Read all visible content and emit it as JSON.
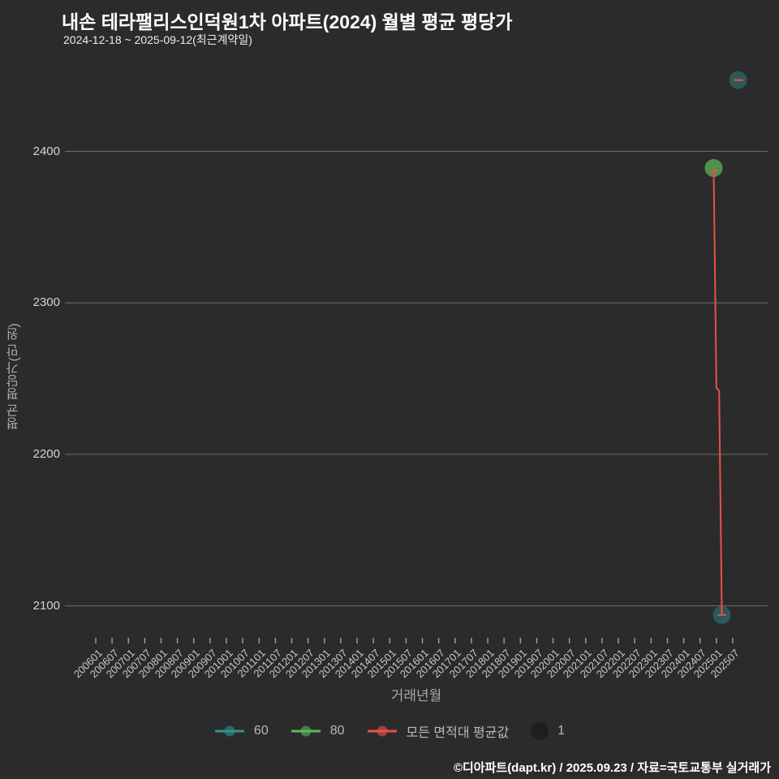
{
  "header": {
    "title": "내손 테라팰리스인덕원1차 아파트(2024) 월별 평균 평당가",
    "subtitle": "2024-12-18 ~ 2025-09-12(최근계약일)"
  },
  "footer": {
    "credit": "©디아파트(dapt.kr) / 2025.09.23 / 자료=국토교통부 실거래가"
  },
  "legend": {
    "items": [
      {
        "label": "60"
      },
      {
        "label": "80"
      },
      {
        "label": "모든 면적대 평균값"
      },
      {
        "label": "1"
      }
    ]
  },
  "chart_data": {
    "type": "scatter",
    "title": "내손 테라팰리스인덕원1차 아파트(2024) 월별 평균 평당가",
    "subtitle": "2024-12-18 ~ 2025-09-12(최근계약일)",
    "xlabel": "거래년월",
    "ylabel": "평균 평당가(만 원)",
    "y_ticks": [
      2100,
      2200,
      2300,
      2400
    ],
    "ylim": [
      2050,
      2470
    ],
    "grid": "horizontal",
    "legend_position": "bottom",
    "background_color": "#2b2b2b",
    "gridline_color": "#6e6e6e",
    "x_tick_labels": [
      "200601",
      "200607",
      "200701",
      "200707",
      "200801",
      "200807",
      "200901",
      "200907",
      "201001",
      "201007",
      "201101",
      "201107",
      "201201",
      "201207",
      "201301",
      "201307",
      "201401",
      "201407",
      "201501",
      "201507",
      "201601",
      "201607",
      "201701",
      "201707",
      "201801",
      "201807",
      "201901",
      "201907",
      "202001",
      "202007",
      "202101",
      "202107",
      "202201",
      "202207",
      "202301",
      "202307",
      "202401",
      "202407",
      "202501",
      "202507"
    ],
    "series": [
      {
        "name": "60",
        "type": "scatter",
        "color": "#2e9393",
        "marker_opacity": 0.45,
        "points": [
          {
            "month": "202503",
            "value": 2094,
            "count": 1
          },
          {
            "month": "202509",
            "value": 2447,
            "count": 1
          }
        ]
      },
      {
        "name": "80",
        "type": "scatter",
        "color": "#5cb85c",
        "marker_opacity": 0.72,
        "points": [
          {
            "month": "202412",
            "value": 2389,
            "count": 1
          }
        ]
      },
      {
        "name": "모든 면적대 평균값",
        "type": "line",
        "color": "#e8514b",
        "points": [
          {
            "month": "202412",
            "value": 2387
          },
          {
            "month": "202501",
            "value": 2244
          },
          {
            "month": "202502",
            "value": 2242
          },
          {
            "month": "202503",
            "value": 2094
          }
        ],
        "isolated_points": [
          {
            "month": "202509",
            "value": 2447
          }
        ]
      }
    ],
    "size_legend": {
      "label": "1",
      "meaning": "transaction count"
    }
  }
}
